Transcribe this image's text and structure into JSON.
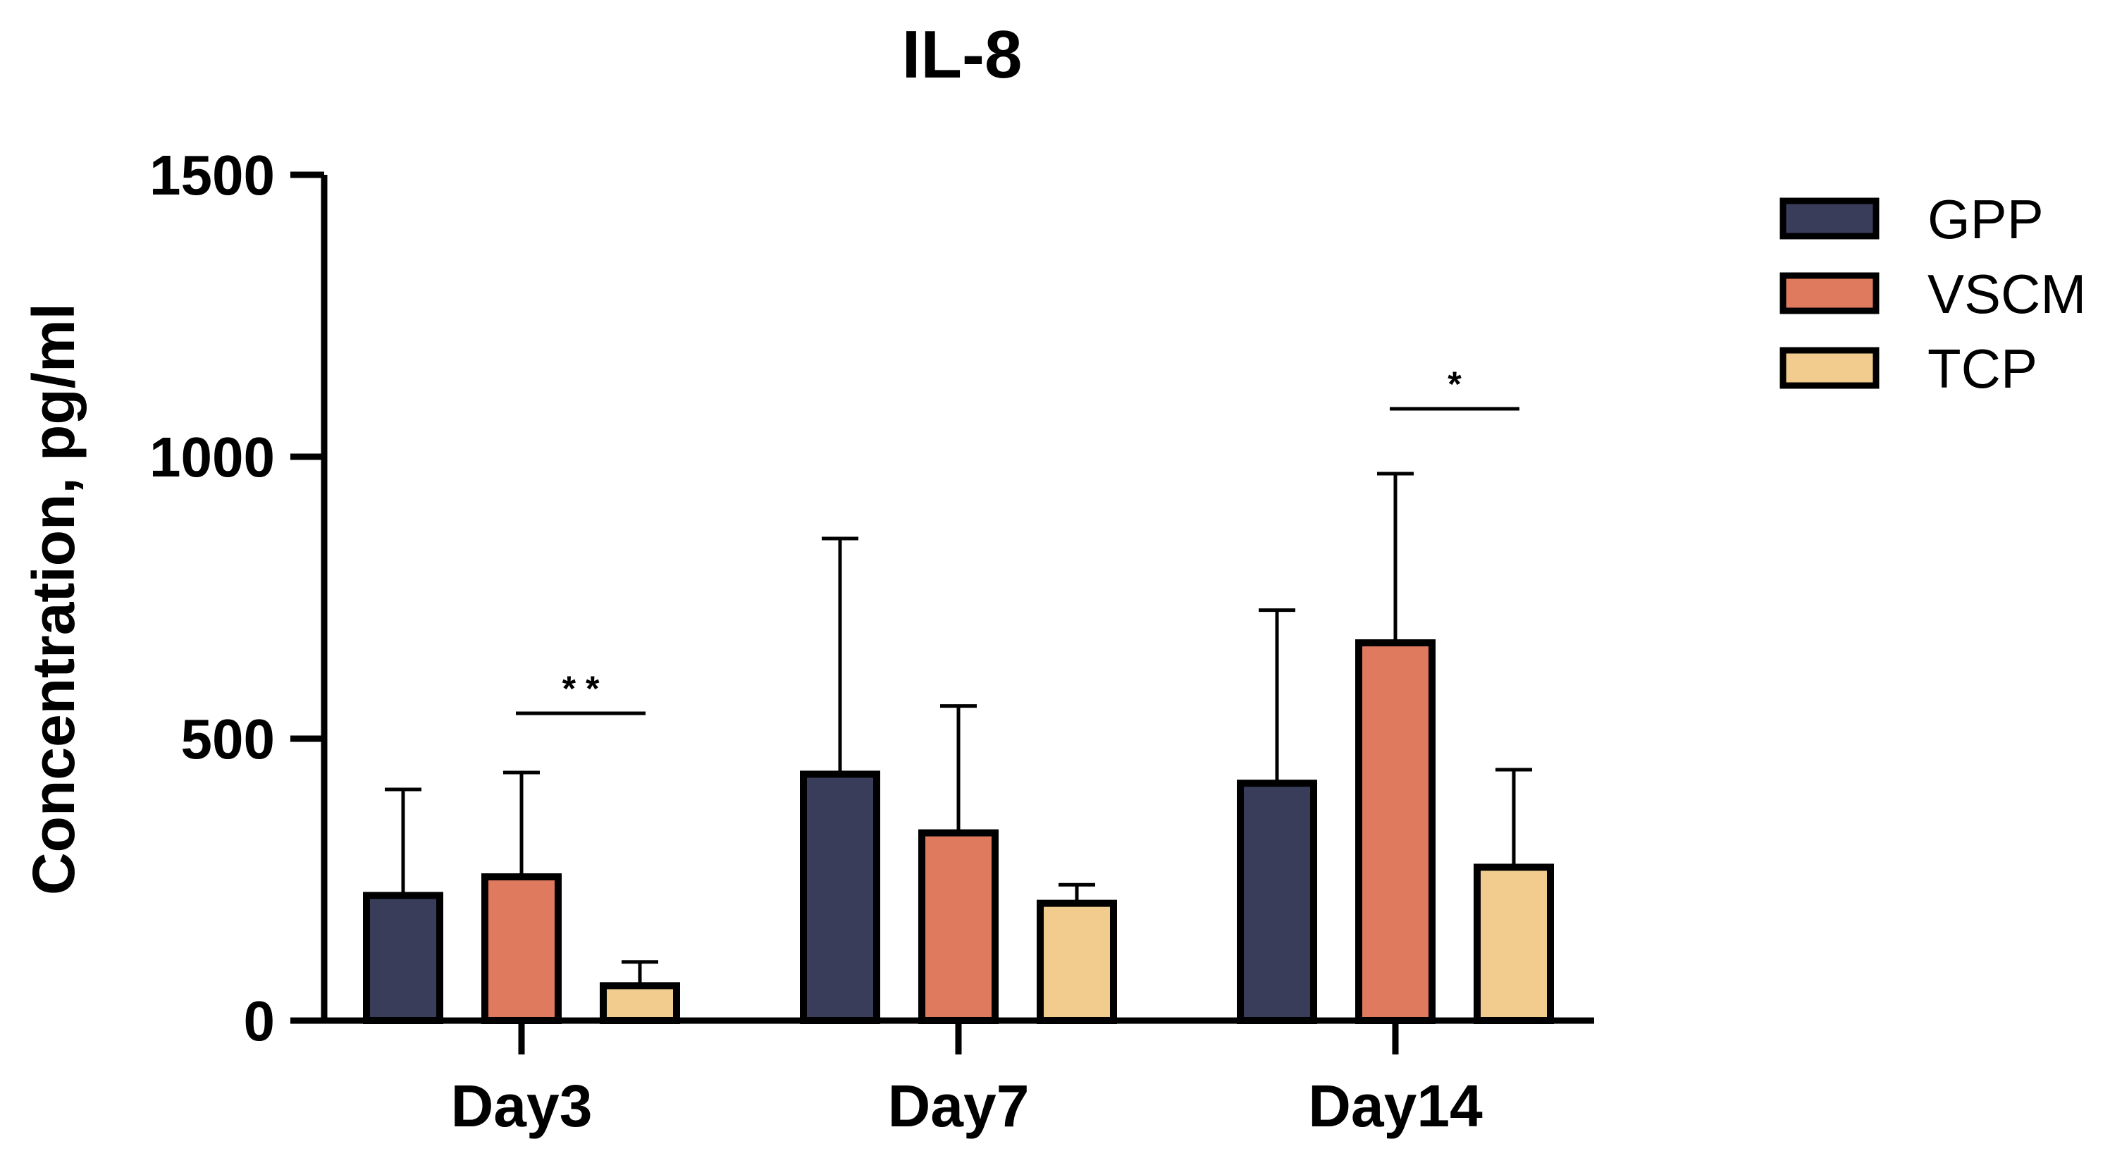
{
  "chart_data": {
    "type": "bar",
    "title": "IL-8",
    "xlabel": "",
    "ylabel": "Concentration, pg/ml",
    "ylim": [
      0,
      1500
    ],
    "yticks": [
      0,
      500,
      1000,
      1500
    ],
    "yticks_labels": [
      "0",
      "500",
      "1000",
      "1500"
    ],
    "grid": false,
    "legend_position": "top-right",
    "categories": [
      "Day3",
      "Day7",
      "Day14"
    ],
    "series": [
      {
        "name": "GPP",
        "color": "#3a3d5a",
        "values": [
          222,
          437,
          421
        ],
        "errors": [
          188,
          418,
          307
        ]
      },
      {
        "name": "VSCM",
        "color": "#e07a5f",
        "values": [
          255,
          333,
          670
        ],
        "errors": [
          185,
          225,
          300
        ]
      },
      {
        "name": "TCP",
        "color": "#f2cc8f",
        "values": [
          62,
          208,
          272
        ],
        "errors": [
          42,
          33,
          173
        ]
      }
    ],
    "annotations": [
      {
        "category": "Day3",
        "from_series": "VSCM",
        "to_series": "TCP",
        "label": "* *",
        "y": 545
      },
      {
        "category": "Day14",
        "from_series": "VSCM",
        "to_series": "TCP",
        "label": "*",
        "y": 1085
      }
    ]
  }
}
